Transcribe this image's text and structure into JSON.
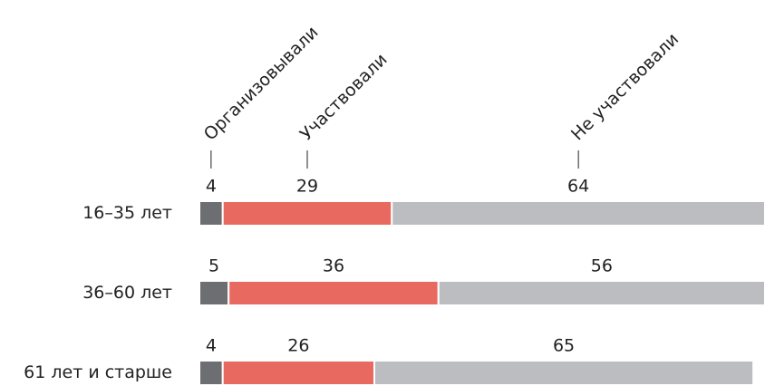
{
  "chart_data": {
    "type": "stacked_bar",
    "orientation": "horizontal",
    "categories": [
      "16–35 лет",
      "36–60 лет",
      "61 лет и старше"
    ],
    "series": [
      {
        "name": "Организовывали",
        "color": "#6d6e71",
        "values": [
          4,
          5,
          4
        ]
      },
      {
        "name": "Участвовали",
        "color": "#e8695f",
        "values": [
          29,
          36,
          26
        ]
      },
      {
        "name": "Не участвовали",
        "color": "#bcbdc0",
        "values": [
          64,
          56,
          65
        ]
      }
    ],
    "xlim": [
      0,
      97
    ]
  }
}
